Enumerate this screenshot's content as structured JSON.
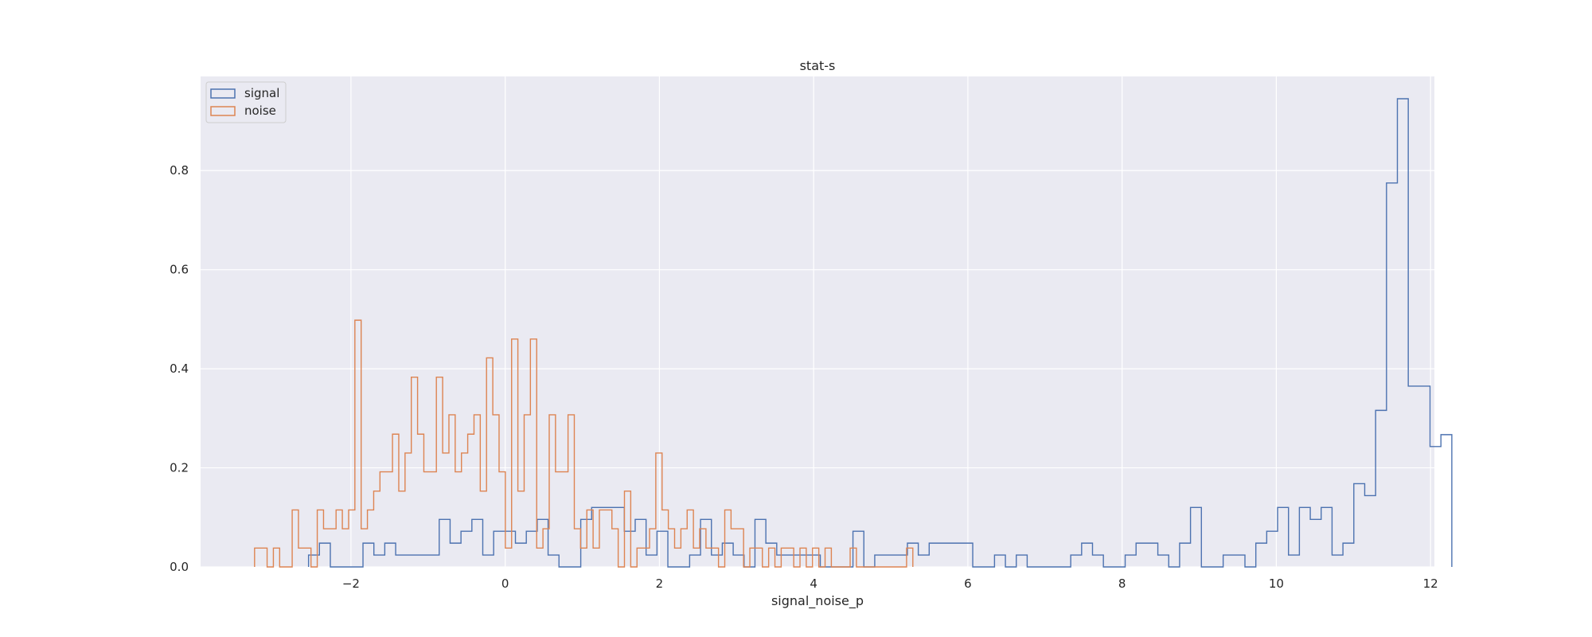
{
  "chart_data": {
    "type": "histogram",
    "title": "stat-s",
    "xlabel": "signal_noise_p",
    "ylabel": "",
    "xlim": [
      -3.95,
      12.05
    ],
    "ylim": [
      0,
      0.99
    ],
    "xticks": [
      -2,
      0,
      2,
      4,
      6,
      8,
      10,
      12
    ],
    "yticks": [
      0.0,
      0.2,
      0.4,
      0.6,
      0.8
    ],
    "grid": true,
    "legend_position": "top-left",
    "histtype": "step",
    "series": [
      {
        "name": "signal",
        "color": "#4c72b0",
        "bin_start": -2.55,
        "bin_width": 0.1412,
        "counts": [
          0.024,
          0.048,
          0,
          0,
          0,
          0.048,
          0.024,
          0.048,
          0.024,
          0.024,
          0.024,
          0.024,
          0.096,
          0.048,
          0.072,
          0.096,
          0.024,
          0.072,
          0.072,
          0.048,
          0.072,
          0.096,
          0.024,
          0,
          0,
          0.096,
          0.12,
          0.12,
          0.12,
          0.072,
          0.096,
          0.024,
          0.072,
          0,
          0,
          0.024,
          0.096,
          0.024,
          0.048,
          0.024,
          0,
          0.096,
          0.048,
          0.024,
          0.024,
          0.024,
          0.024,
          0,
          0,
          0,
          0.072,
          0,
          0.024,
          0.024,
          0.024,
          0.048,
          0.024,
          0.048,
          0.048,
          0.048,
          0.048,
          0,
          0,
          0.024,
          0,
          0.024,
          0,
          0,
          0,
          0,
          0.024,
          0.048,
          0.024,
          0,
          0,
          0.024,
          0.048,
          0.048,
          0.024,
          0,
          0.048,
          0.12,
          0,
          0,
          0.024,
          0.024,
          0,
          0.048,
          0.072,
          0.12,
          0.024,
          0.12,
          0.096,
          0.12,
          0.024,
          0.048,
          0.168,
          0.144,
          0.316,
          0.775,
          0.945,
          0.365,
          0.365,
          0.243,
          0.267
        ]
      },
      {
        "name": "noise",
        "color": "#dd8452",
        "bin_start": -3.25,
        "bin_width": 0.0813,
        "counts": [
          0.038,
          0.038,
          0,
          0.038,
          0,
          0,
          0.115,
          0.038,
          0.038,
          0,
          0.115,
          0.077,
          0.077,
          0.115,
          0.077,
          0.115,
          0.498,
          0.077,
          0.115,
          0.153,
          0.192,
          0.192,
          0.268,
          0.153,
          0.23,
          0.383,
          0.268,
          0.192,
          0.192,
          0.383,
          0.23,
          0.307,
          0.192,
          0.23,
          0.268,
          0.307,
          0.153,
          0.422,
          0.307,
          0.192,
          0.038,
          0.46,
          0.153,
          0.307,
          0.46,
          0.038,
          0.077,
          0.307,
          0.192,
          0.192,
          0.307,
          0.077,
          0.038,
          0.115,
          0.038,
          0.115,
          0.115,
          0.077,
          0,
          0.153,
          0,
          0.038,
          0.038,
          0.077,
          0.23,
          0.115,
          0.077,
          0.038,
          0.077,
          0.115,
          0.038,
          0.077,
          0.038,
          0.038,
          0,
          0.115,
          0.077,
          0.077,
          0,
          0.038,
          0.038,
          0,
          0.038,
          0,
          0.038,
          0.038,
          0,
          0.038,
          0,
          0.038,
          0,
          0.038,
          0,
          0,
          0,
          0.038,
          0,
          0,
          0,
          0,
          0,
          0,
          0,
          0,
          0.038
        ]
      }
    ]
  }
}
